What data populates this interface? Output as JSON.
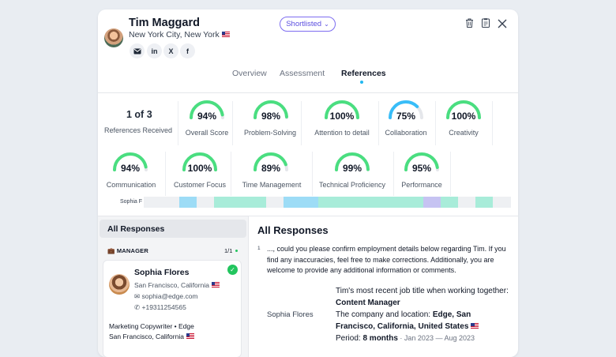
{
  "candidate": {
    "name": "Tim Maggard",
    "location": "New York City, New York",
    "status": "Shortlisted"
  },
  "social": [
    {
      "icon": "email-icon"
    },
    {
      "icon": "linkedin-icon",
      "glyph": "in"
    },
    {
      "icon": "x-icon",
      "glyph": "X"
    },
    {
      "icon": "facebook-icon",
      "glyph": "f"
    }
  ],
  "tabs": [
    {
      "label": "Overview"
    },
    {
      "label": "Assessment"
    },
    {
      "label": "References"
    }
  ],
  "summary": {
    "count": "1 of 3",
    "count_label": "References Received"
  },
  "scores": [
    {
      "value": "94%",
      "label": "Overall Score",
      "pct": 94,
      "color": "#4ade80"
    },
    {
      "value": "98%",
      "label": "Problem-Solving",
      "pct": 98,
      "color": "#4ade80"
    },
    {
      "value": "100%",
      "label": "Attention to detail",
      "pct": 100,
      "color": "#4ade80"
    },
    {
      "value": "75%",
      "label": "Collaboration",
      "pct": 75,
      "color": "#38bdf8"
    },
    {
      "value": "100%",
      "label": "Creativity",
      "pct": 100,
      "color": "#4ade80"
    },
    {
      "value": "94%",
      "label": "Communication",
      "pct": 94,
      "color": "#4ade80"
    },
    {
      "value": "100%",
      "label": "Customer Focus",
      "pct": 100,
      "color": "#4ade80"
    },
    {
      "value": "89%",
      "label": "Time Management",
      "pct": 89,
      "color": "#4ade80"
    },
    {
      "value": "99%",
      "label": "Technical Proficiency",
      "pct": 99,
      "color": "#4ade80"
    },
    {
      "value": "95%",
      "label": "Performance",
      "pct": 95,
      "color": "#4ade80"
    }
  ],
  "timeline": {
    "label": "Sophia F –",
    "segments": [
      {
        "color": "#eef0f3",
        "w": 45
      },
      {
        "color": "#9ddcf6",
        "w": 22
      },
      {
        "color": "#eef0f3",
        "w": 22
      },
      {
        "color": "#a8ecd9",
        "w": 66
      },
      {
        "color": "#eef0f3",
        "w": 22
      },
      {
        "color": "#9ddcf6",
        "w": 44
      },
      {
        "color": "#a8ecd9",
        "w": 133
      },
      {
        "color": "#c6c3f2",
        "w": 22
      },
      {
        "color": "#a8ecd9",
        "w": 22
      },
      {
        "color": "#eef0f3",
        "w": 22
      },
      {
        "color": "#a8ecd9",
        "w": 22
      },
      {
        "color": "#eef0f3",
        "w": 23
      }
    ]
  },
  "sidebar": {
    "all_responses": "All Responses",
    "role": "MANAGER",
    "role_count": "1/1",
    "reference": {
      "name": "Sophia Flores",
      "location": "San Francisco, California",
      "email": "sophia@edge.com",
      "phone": "+19311254565",
      "job": "Marketing Copywriter • Edge",
      "job_location": "San Francisco, California"
    }
  },
  "main": {
    "title": "All Responses",
    "question_number": "1",
    "question": "..., could you please confirm employment details below regarding Tim. If you find any inaccuracies, feel free to make corrections. Additionally, you are welcome to provide any additional information or comments.",
    "respondent": "Sophia Flores",
    "answer_intro": "Tim's most recent job title when working together: ",
    "answer_title": "Content Manager",
    "answer_company_intro": "The company and location: ",
    "answer_company": "Edge, San Francisco, California, United States",
    "answer_period_intro": "Period: ",
    "answer_period": "8 months",
    "answer_dates": " · Jan 2023 — Aug 2023"
  }
}
